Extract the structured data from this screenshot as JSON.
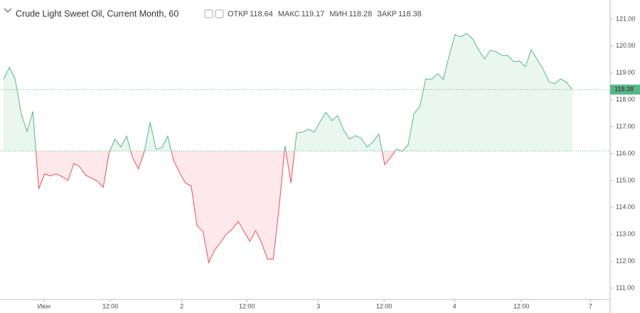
{
  "chart_data": {
    "type": "baseline-line",
    "title": "Crude Light Sweet Oil, Current Month, 60",
    "ohlc": [
      {
        "label": "ОТКР",
        "value": 118.64
      },
      {
        "label": "МАКС",
        "value": 119.17
      },
      {
        "label": "МИН",
        "value": 118.28
      },
      {
        "label": "ЗАКР",
        "value": 118.38
      }
    ],
    "last": 118.38,
    "baseline": 116.1,
    "up_color": "#53b987",
    "down_color": "#eb4d5c",
    "values": [
      118.76,
      119.21,
      118.76,
      117.49,
      116.83,
      117.57,
      114.69,
      115.25,
      115.17,
      115.25,
      115.14,
      115.01,
      115.64,
      115.51,
      115.2,
      115.09,
      114.98,
      114.75,
      116.04,
      116.54,
      116.25,
      116.65,
      115.85,
      115.43,
      116.07,
      117.17,
      116.17,
      116.22,
      116.65,
      115.75,
      115.3,
      114.91,
      114.8,
      113.32,
      113.11,
      111.95,
      112.42,
      112.69,
      113.01,
      113.19,
      113.48,
      113.11,
      112.74,
      113.14,
      112.69,
      112.08,
      112.08,
      114.01,
      116.3,
      114.91,
      116.78,
      116.8,
      116.91,
      116.8,
      117.2,
      117.54,
      117.23,
      117.41,
      116.88,
      116.54,
      116.67,
      116.57,
      116.25,
      116.44,
      116.73,
      115.59,
      115.85,
      116.17,
      116.09,
      116.33,
      117.49,
      117.75,
      118.78,
      118.76,
      118.97,
      118.76,
      119.65,
      120.42,
      120.34,
      120.47,
      120.26,
      119.87,
      119.52,
      119.84,
      119.79,
      119.65,
      119.65,
      119.42,
      119.44,
      119.23,
      119.87,
      119.5,
      119.15,
      118.68,
      118.6,
      118.78,
      118.65,
      118.38
    ],
    "xlim": [
      -0.606,
      103.45
    ],
    "xticks": [
      {
        "value": 6.9,
        "label": "Июн"
      },
      {
        "value": 18.2,
        "label": "12:00"
      },
      {
        "value": 30.4,
        "label": "2"
      },
      {
        "value": 41.5,
        "label": "12:00"
      },
      {
        "value": 53.7,
        "label": "3"
      },
      {
        "value": 64.9,
        "label": "12:00"
      },
      {
        "value": 76.9,
        "label": "4"
      },
      {
        "value": 88.3,
        "label": "12:00"
      },
      {
        "value": 100.1,
        "label": "7"
      }
    ],
    "ylim": [
      110.58,
      121.71
    ],
    "yticks": [
      {
        "value": 121,
        "label": "121.00"
      },
      {
        "value": 120,
        "label": "120.00"
      },
      {
        "value": 119,
        "label": "119.00"
      },
      {
        "value": 118,
        "label": "118.00"
      },
      {
        "value": 117,
        "label": "117.00"
      },
      {
        "value": 116,
        "label": "116.00"
      },
      {
        "value": 115,
        "label": "115.00"
      },
      {
        "value": 114,
        "label": "114.00"
      },
      {
        "value": 113,
        "label": "113.00"
      },
      {
        "value": 112,
        "label": "112.00"
      },
      {
        "value": 111,
        "label": "111.00"
      }
    ]
  }
}
